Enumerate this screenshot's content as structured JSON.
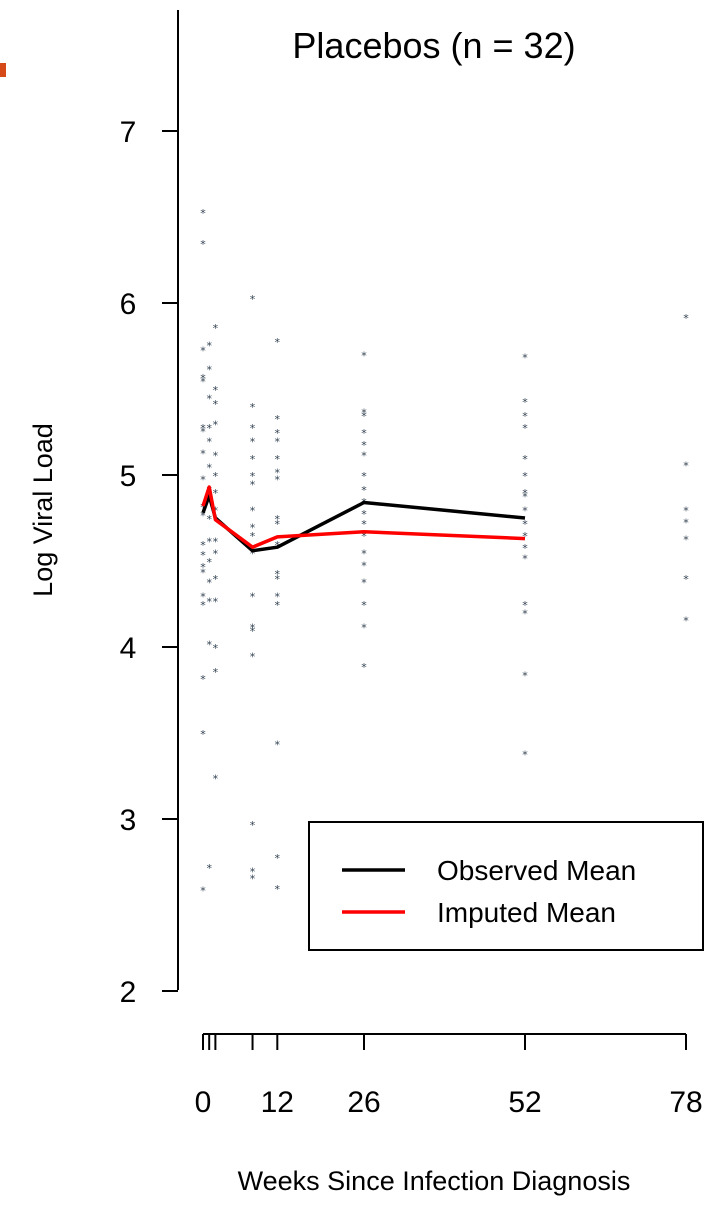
{
  "chart_data": {
    "type": "line",
    "title": "Placebos (n = 32)",
    "xlabel": "Weeks Since Infection Diagnosis",
    "ylabel": "Log Viral Load",
    "xlim": [
      0,
      78
    ],
    "ylim": [
      2,
      7.5
    ],
    "x_ticks": [
      0,
      1,
      2,
      8,
      12,
      26,
      52,
      78
    ],
    "x_tick_labels": [
      {
        "x": 0,
        "label": "0"
      },
      {
        "x": 12,
        "label": "12"
      },
      {
        "x": 26,
        "label": "26"
      },
      {
        "x": 52,
        "label": "52"
      },
      {
        "x": 78,
        "label": "78"
      }
    ],
    "y_ticks": [
      2,
      3,
      4,
      5,
      6,
      7
    ],
    "grid": false,
    "legend": {
      "position": "bottom-right",
      "entries": [
        {
          "label": "Observed Mean",
          "color": "#000000"
        },
        {
          "label": "Imputed Mean",
          "color": "#ff0000"
        }
      ]
    },
    "series": [
      {
        "name": "Observed Mean",
        "color": "#000000",
        "x": [
          0,
          1,
          2,
          8,
          12,
          26,
          52
        ],
        "y": [
          4.78,
          4.88,
          4.75,
          4.56,
          4.58,
          4.84,
          4.75
        ]
      },
      {
        "name": "Imputed Mean",
        "color": "#ff0000",
        "x": [
          0,
          1,
          2,
          8,
          12,
          26,
          52
        ],
        "y": [
          4.82,
          4.93,
          4.74,
          4.58,
          4.64,
          4.67,
          4.63
        ]
      }
    ],
    "points_marker": "*",
    "points_color": "#2f3f4f",
    "points": [
      [
        0,
        6.53
      ],
      [
        0,
        6.35
      ],
      [
        0,
        5.73
      ],
      [
        0,
        5.57
      ],
      [
        0,
        5.55
      ],
      [
        0,
        5.28
      ],
      [
        0,
        5.26
      ],
      [
        0,
        5.13
      ],
      [
        0,
        4.98
      ],
      [
        0,
        4.82
      ],
      [
        0,
        4.77
      ],
      [
        0,
        4.6
      ],
      [
        0,
        4.54
      ],
      [
        0,
        4.47
      ],
      [
        0,
        4.44
      ],
      [
        0,
        4.3
      ],
      [
        0,
        4.25
      ],
      [
        0,
        3.82
      ],
      [
        0,
        3.5
      ],
      [
        0,
        2.59
      ],
      [
        1,
        5.76
      ],
      [
        1,
        5.62
      ],
      [
        1,
        5.45
      ],
      [
        1,
        5.28
      ],
      [
        1,
        5.2
      ],
      [
        1,
        5.05
      ],
      [
        1,
        4.92
      ],
      [
        1,
        4.75
      ],
      [
        1,
        4.62
      ],
      [
        1,
        4.5
      ],
      [
        1,
        4.38
      ],
      [
        1,
        4.27
      ],
      [
        1,
        4.02
      ],
      [
        1,
        2.72
      ],
      [
        2,
        5.86
      ],
      [
        2,
        5.5
      ],
      [
        2,
        5.42
      ],
      [
        2,
        5.3
      ],
      [
        2,
        5.12
      ],
      [
        2,
        5.0
      ],
      [
        2,
        4.9
      ],
      [
        2,
        4.8
      ],
      [
        2,
        4.62
      ],
      [
        2,
        4.55
      ],
      [
        2,
        4.4
      ],
      [
        2,
        4.27
      ],
      [
        2,
        4.0
      ],
      [
        2,
        3.86
      ],
      [
        2,
        3.24
      ],
      [
        8,
        6.03
      ],
      [
        8,
        5.4
      ],
      [
        8,
        5.28
      ],
      [
        8,
        5.2
      ],
      [
        8,
        5.1
      ],
      [
        8,
        5.0
      ],
      [
        8,
        4.95
      ],
      [
        8,
        4.8
      ],
      [
        8,
        4.7
      ],
      [
        8,
        4.65
      ],
      [
        8,
        4.55
      ],
      [
        8,
        4.3
      ],
      [
        8,
        4.12
      ],
      [
        8,
        4.1
      ],
      [
        8,
        3.95
      ],
      [
        8,
        2.97
      ],
      [
        8,
        2.7
      ],
      [
        8,
        2.66
      ],
      [
        12,
        5.78
      ],
      [
        12,
        5.33
      ],
      [
        12,
        5.25
      ],
      [
        12,
        5.2
      ],
      [
        12,
        5.1
      ],
      [
        12,
        5.02
      ],
      [
        12,
        4.98
      ],
      [
        12,
        4.75
      ],
      [
        12,
        4.72
      ],
      [
        12,
        4.6
      ],
      [
        12,
        4.43
      ],
      [
        12,
        4.4
      ],
      [
        12,
        4.3
      ],
      [
        12,
        4.25
      ],
      [
        12,
        3.44
      ],
      [
        12,
        2.78
      ],
      [
        12,
        2.6
      ],
      [
        26,
        5.7
      ],
      [
        26,
        5.37
      ],
      [
        26,
        5.35
      ],
      [
        26,
        5.25
      ],
      [
        26,
        5.18
      ],
      [
        26,
        5.12
      ],
      [
        26,
        5.0
      ],
      [
        26,
        4.92
      ],
      [
        26,
        4.85
      ],
      [
        26,
        4.78
      ],
      [
        26,
        4.72
      ],
      [
        26,
        4.65
      ],
      [
        26,
        4.55
      ],
      [
        26,
        4.48
      ],
      [
        26,
        4.38
      ],
      [
        26,
        4.25
      ],
      [
        26,
        4.12
      ],
      [
        26,
        3.89
      ],
      [
        52,
        5.69
      ],
      [
        52,
        5.43
      ],
      [
        52,
        5.35
      ],
      [
        52,
        5.28
      ],
      [
        52,
        5.1
      ],
      [
        52,
        5.0
      ],
      [
        52,
        4.9
      ],
      [
        52,
        4.88
      ],
      [
        52,
        4.8
      ],
      [
        52,
        4.72
      ],
      [
        52,
        4.65
      ],
      [
        52,
        4.58
      ],
      [
        52,
        4.52
      ],
      [
        52,
        4.25
      ],
      [
        52,
        4.2
      ],
      [
        52,
        3.84
      ],
      [
        52,
        3.38
      ],
      [
        78,
        5.92
      ],
      [
        78,
        5.06
      ],
      [
        78,
        4.8
      ],
      [
        78,
        4.73
      ],
      [
        78,
        4.63
      ],
      [
        78,
        4.4
      ],
      [
        78,
        4.16
      ]
    ]
  }
}
